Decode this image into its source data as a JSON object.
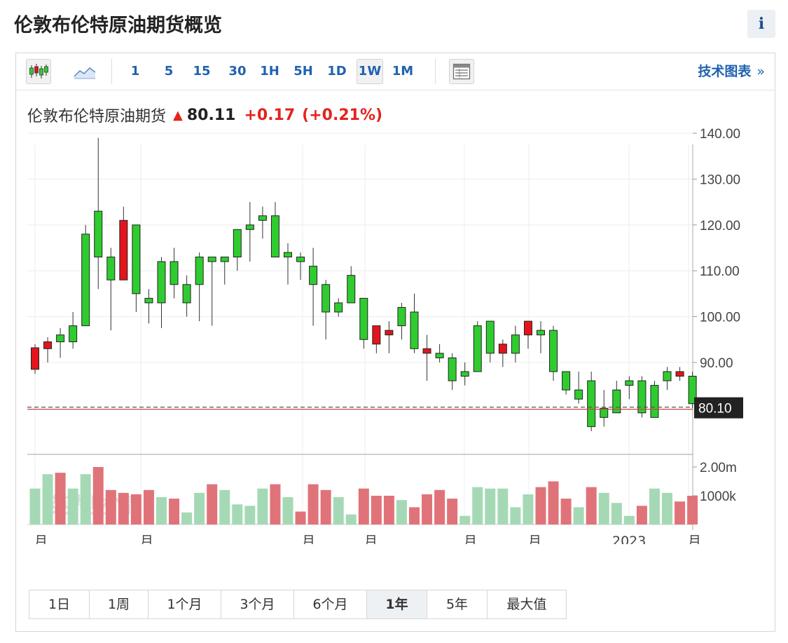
{
  "page": {
    "title": "伦敦布伦特原油期货概览",
    "info_label": "i"
  },
  "toolbar": {
    "chart_types": [
      {
        "name": "candlestick-chart-button",
        "icon": "candlestick-icon",
        "active": false
      },
      {
        "name": "area-chart-button",
        "icon": "area-chart-icon",
        "active": false
      }
    ],
    "intervals": [
      {
        "label": "1",
        "active": false
      },
      {
        "label": "5",
        "active": false
      },
      {
        "label": "15",
        "active": false
      },
      {
        "label": "30",
        "active": false
      },
      {
        "label": "1H",
        "active": false
      },
      {
        "label": "5H",
        "active": false
      },
      {
        "label": "1D",
        "active": false
      },
      {
        "label": "1W",
        "active": true
      },
      {
        "label": "1M",
        "active": false
      }
    ],
    "table_icon": "table-icon",
    "tech_chart_label": "技术图表",
    "tech_chart_chevron": "»"
  },
  "quote": {
    "name": "伦敦布伦特原油期货",
    "arrow": "▲",
    "price": "80.11",
    "change": "+0.17",
    "change_pct": "(+0.21%)",
    "colors": {
      "up": "#e4231d"
    }
  },
  "chart_data": {
    "type": "candlestick",
    "interval": "1W",
    "price_axis": {
      "ticks": [
        "140.00",
        "130.00",
        "120.00",
        "110.00",
        "100.00",
        "90.00"
      ],
      "range": [
        73,
        142
      ]
    },
    "current_price_label": "80.10",
    "current_price": 80.1,
    "volume_axis": {
      "ticks": [
        "2.00m",
        "1000k"
      ],
      "range": [
        0,
        2000000
      ]
    },
    "x_tick_labels": [
      "月",
      "月",
      "月",
      "月",
      "月",
      "月",
      "2023",
      "月"
    ],
    "watermark": "英为财情 investing.com",
    "colors": {
      "up": "#2fcc2f",
      "down": "#e3141c",
      "vol_up": "#a5d9b5",
      "vol_down": "#e07379",
      "price_line": "#c8463f"
    },
    "candles": [
      [
        93.2,
        88.5,
        94,
        87.5
      ],
      [
        94.5,
        93,
        95.5,
        90
      ],
      [
        94.5,
        96,
        97.5,
        91
      ],
      [
        94.5,
        98,
        101,
        93
      ],
      [
        98,
        118,
        120,
        98
      ],
      [
        113,
        123,
        139,
        106
      ],
      [
        108,
        113,
        115,
        97
      ],
      [
        121,
        108,
        124,
        108
      ],
      [
        105,
        120,
        120,
        101
      ],
      [
        103,
        104,
        106,
        98.5
      ],
      [
        103,
        112,
        113,
        97.5
      ],
      [
        107,
        112,
        115,
        104
      ],
      [
        103,
        107,
        109,
        100
      ],
      [
        107,
        113,
        114,
        99
      ],
      [
        112,
        113,
        113,
        98
      ],
      [
        112,
        113,
        113,
        107
      ],
      [
        113,
        119,
        119,
        110
      ],
      [
        119,
        120,
        125,
        112
      ],
      [
        121,
        122,
        124,
        117
      ],
      [
        113,
        122,
        125,
        113
      ],
      [
        113,
        114,
        116,
        107
      ],
      [
        112,
        113,
        114,
        108
      ],
      [
        107,
        111,
        115,
        98
      ],
      [
        101,
        107,
        108,
        95
      ],
      [
        101,
        103,
        104,
        100
      ],
      [
        103,
        109,
        111,
        103
      ],
      [
        95,
        104,
        104,
        93
      ],
      [
        98,
        94,
        95,
        92
      ],
      [
        97,
        96,
        99,
        92
      ],
      [
        98,
        102,
        103,
        95
      ],
      [
        93,
        101,
        105,
        92
      ],
      [
        93,
        92,
        96,
        86
      ],
      [
        91,
        92,
        94,
        90
      ],
      [
        86,
        91,
        92,
        84
      ],
      [
        87,
        88,
        90,
        85
      ],
      [
        88,
        98,
        99,
        88
      ],
      [
        92,
        99,
        99,
        90
      ],
      [
        94,
        92,
        95,
        89
      ],
      [
        92,
        96,
        98,
        90
      ],
      [
        99,
        96,
        99,
        93
      ],
      [
        96,
        97,
        99,
        92
      ],
      [
        88,
        97,
        98,
        86
      ],
      [
        84,
        88,
        88,
        83
      ],
      [
        82,
        84,
        88,
        81
      ],
      [
        76,
        86,
        88,
        75
      ],
      [
        78,
        80,
        84,
        76
      ],
      [
        79,
        84,
        86,
        79
      ],
      [
        85,
        86,
        87,
        82
      ],
      [
        79,
        86,
        87,
        78
      ],
      [
        78,
        85,
        86,
        78
      ],
      [
        86,
        88,
        89,
        84
      ],
      [
        88,
        87,
        89,
        86
      ],
      [
        81,
        87,
        88,
        80
      ]
    ],
    "volumes": [
      [
        1.25,
        1
      ],
      [
        1.75,
        1
      ],
      [
        1.8,
        0
      ],
      [
        1.25,
        1
      ],
      [
        1.75,
        1
      ],
      [
        2.0,
        0
      ],
      [
        1.2,
        0
      ],
      [
        1.1,
        0
      ],
      [
        1.05,
        0
      ],
      [
        1.2,
        0
      ],
      [
        0.95,
        1
      ],
      [
        0.9,
        0
      ],
      [
        0.42,
        1
      ],
      [
        1.1,
        1
      ],
      [
        1.4,
        0
      ],
      [
        1.2,
        1
      ],
      [
        0.7,
        1
      ],
      [
        0.65,
        1
      ],
      [
        1.25,
        1
      ],
      [
        1.4,
        0
      ],
      [
        0.95,
        1
      ],
      [
        0.45,
        0
      ],
      [
        1.4,
        0
      ],
      [
        1.2,
        0
      ],
      [
        0.95,
        1
      ],
      [
        0.35,
        1
      ],
      [
        1.25,
        0
      ],
      [
        1.0,
        0
      ],
      [
        1.0,
        0
      ],
      [
        0.85,
        1
      ],
      [
        0.6,
        0
      ],
      [
        1.05,
        0
      ],
      [
        1.2,
        0
      ],
      [
        0.9,
        0
      ],
      [
        0.3,
        1
      ],
      [
        1.3,
        1
      ],
      [
        1.25,
        1
      ],
      [
        1.25,
        1
      ],
      [
        0.6,
        1
      ],
      [
        1.05,
        1
      ],
      [
        1.3,
        0
      ],
      [
        1.5,
        0
      ],
      [
        0.9,
        0
      ],
      [
        0.6,
        1
      ],
      [
        1.3,
        0
      ],
      [
        1.1,
        1
      ],
      [
        0.75,
        1
      ],
      [
        0.3,
        1
      ],
      [
        0.65,
        0
      ],
      [
        1.25,
        1
      ],
      [
        1.1,
        1
      ],
      [
        0.8,
        0
      ],
      [
        1.0,
        0
      ]
    ]
  },
  "range_selector": [
    {
      "label": "1日",
      "active": false
    },
    {
      "label": "1周",
      "active": false
    },
    {
      "label": "1个月",
      "active": false
    },
    {
      "label": "3个月",
      "active": false
    },
    {
      "label": "6个月",
      "active": false
    },
    {
      "label": "1年",
      "active": true
    },
    {
      "label": "5年",
      "active": false
    },
    {
      "label": "最大值",
      "active": false
    }
  ]
}
